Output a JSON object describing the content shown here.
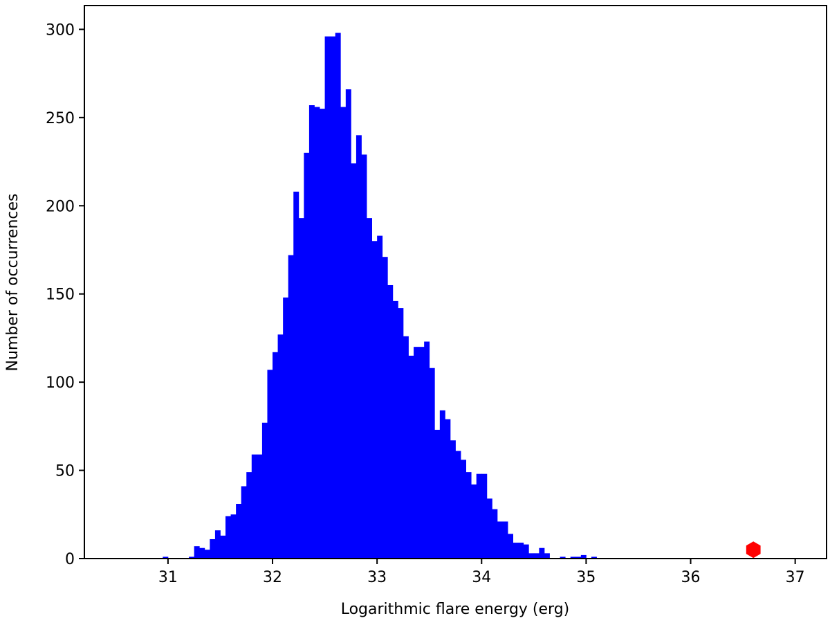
{
  "chart_data": {
    "type": "bar",
    "title": "",
    "xlabel": "Logarithmic flare energy (erg)",
    "ylabel": "Number of occurrences",
    "xlim": [
      30.2,
      37.3
    ],
    "ylim": [
      0,
      300
    ],
    "xticks": [
      31,
      32,
      33,
      34,
      35,
      36,
      37
    ],
    "yticks": [
      0,
      50,
      100,
      150,
      200,
      250,
      300
    ],
    "grid": false,
    "legend": "none",
    "bin_width": 0.05,
    "bin_start": 30.95,
    "values": [
      1,
      0,
      0,
      0,
      0,
      1,
      7,
      6,
      5,
      11,
      16,
      13,
      24,
      25,
      31,
      41,
      49,
      59,
      59,
      77,
      107,
      117,
      127,
      148,
      172,
      208,
      193,
      230,
      257,
      256,
      255,
      296,
      296,
      298,
      256,
      266,
      224,
      240,
      229,
      193,
      180,
      183,
      171,
      155,
      146,
      142,
      126,
      115,
      120,
      120,
      123,
      108,
      73,
      84,
      79,
      67,
      61,
      56,
      49,
      42,
      48,
      48,
      34,
      28,
      21,
      21,
      14,
      9,
      9,
      8,
      3,
      3,
      6,
      3,
      0,
      0,
      1,
      0,
      1,
      1,
      2,
      0,
      1
    ],
    "bar_color": "#0000ff",
    "highlight_point": {
      "x": 36.6,
      "y": 5,
      "color": "#ff0000",
      "marker": "hexagon"
    }
  }
}
